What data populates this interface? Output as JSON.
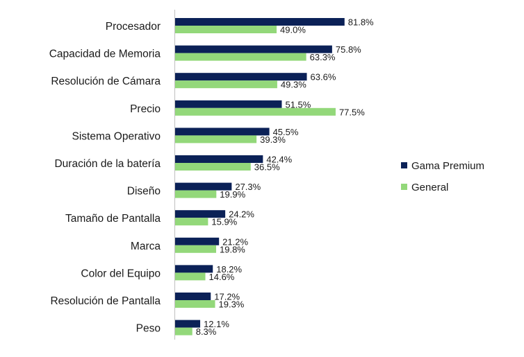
{
  "chart_data": {
    "type": "bar",
    "orientation": "horizontal",
    "categories": [
      "Procesador",
      "Capacidad de Memoria",
      "Resolución de Cámara",
      "Precio",
      "Sistema Operativo",
      "Duración de la batería",
      "Diseño",
      "Tamaño de Pantalla",
      "Marca",
      "Color del Equipo",
      "Resolución de Pantalla",
      "Peso"
    ],
    "series": [
      {
        "name": "Gama Premium",
        "color": "#0b2157",
        "values": [
          81.8,
          75.8,
          63.6,
          51.5,
          45.5,
          42.4,
          27.3,
          24.2,
          21.2,
          18.2,
          17.2,
          12.1
        ],
        "labels": [
          "81.8%",
          "75.8%",
          "63.6%",
          "51.5%",
          "45.5%",
          "42.4%",
          "27.3%",
          "24.2%",
          "21.2%",
          "18.2%",
          "17.2%",
          "12.1%"
        ]
      },
      {
        "name": "General",
        "color": "#93d87a",
        "values": [
          49.0,
          63.3,
          49.3,
          77.5,
          39.3,
          36.5,
          19.9,
          15.9,
          19.8,
          14.6,
          19.3,
          8.3
        ],
        "labels": [
          "49.0%",
          "63.3%",
          "49.3%",
          "77.5%",
          "39.3%",
          "36.5%",
          "19.9%",
          "15.9%",
          "19.8%",
          "14.6%",
          "19.3%",
          "8.3%"
        ]
      }
    ],
    "xlim": [
      0,
      100
    ],
    "grid": false,
    "legend_position": "right"
  }
}
